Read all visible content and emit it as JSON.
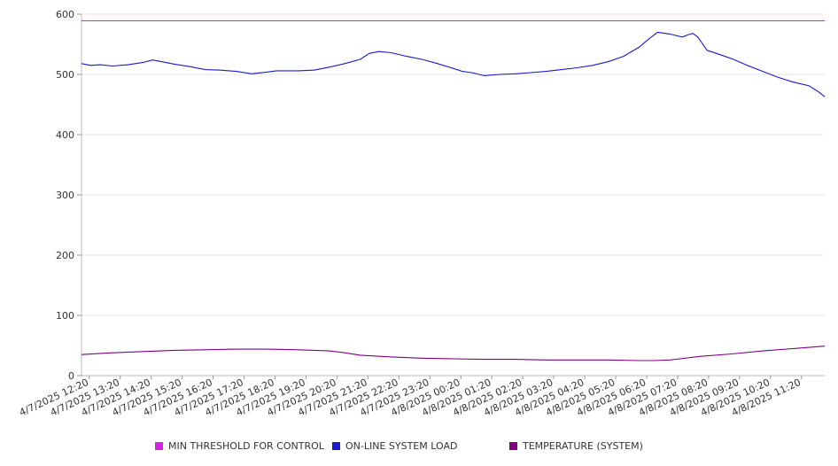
{
  "chart_data": {
    "type": "line",
    "title": "",
    "xlabel": "",
    "ylabel": "",
    "ylim": [
      0,
      600
    ],
    "yticks": [
      0,
      100,
      200,
      300,
      400,
      500,
      600
    ],
    "grid": true,
    "legend_position": "bottom",
    "x_tick_labels": [
      "4/7/2025 12:20",
      "4/7/2025 13:20",
      "4/7/2025 14:20",
      "4/7/2025 15:20",
      "4/7/2025 16:20",
      "4/7/2025 17:20",
      "4/7/2025 18:20",
      "4/7/2025 19:20",
      "4/7/2025 20:20",
      "4/7/2025 21:20",
      "4/7/2025 22:20",
      "4/7/2025 23:20",
      "4/8/2025 00:20",
      "4/8/2025 01:20",
      "4/8/2025 02:20",
      "4/8/2025 03:20",
      "4/8/2025 04:20",
      "4/8/2025 05:20",
      "4/8/2025 06:20",
      "4/8/2025 07:20",
      "4/8/2025 08:20",
      "4/8/2025 09:20",
      "4/8/2025 10:20",
      "4/8/2025 11:20"
    ],
    "x_start": "4/7/2025 12:00",
    "x_end": "4/8/2025 12:00",
    "x_unit": "hours since 4/7/2025 12:00",
    "series": [
      {
        "name": "MIN THRESHOLD FOR CONTROL",
        "color": "#e020e0",
        "x": [
          0,
          24
        ],
        "values": [
          589,
          589
        ]
      },
      {
        "name": "ON-LINE SYSTEM LOAD",
        "color": "#1a1acc",
        "x": [
          0,
          0.3,
          0.6,
          1.0,
          1.5,
          2.0,
          2.3,
          2.6,
          3.0,
          3.5,
          4.0,
          4.5,
          5.0,
          5.5,
          6.0,
          6.3,
          6.6,
          7.0,
          7.5,
          8.0,
          8.5,
          9.0,
          9.3,
          9.6,
          10.0,
          10.5,
          11.0,
          11.5,
          12.0,
          12.3,
          12.6,
          13.0,
          13.5,
          14.0,
          14.5,
          15.0,
          15.5,
          16.0,
          16.5,
          17.0,
          17.5,
          18.0,
          18.3,
          18.6,
          19.0,
          19.4,
          19.6,
          19.75,
          19.9,
          20.2,
          20.5,
          21.0,
          21.5,
          22.0,
          22.5,
          23.0,
          23.5,
          23.8,
          24.0
        ],
        "values": [
          518,
          515,
          516,
          514,
          516,
          520,
          524,
          521,
          517,
          513,
          508,
          507,
          505,
          501,
          504,
          506,
          506,
          506,
          507,
          512,
          518,
          525,
          535,
          538,
          536,
          530,
          525,
          518,
          510,
          505,
          503,
          498,
          500,
          501,
          503,
          505,
          508,
          511,
          515,
          521,
          530,
          545,
          558,
          570,
          567,
          562,
          566,
          568,
          562,
          540,
          535,
          526,
          515,
          505,
          495,
          487,
          481,
          471,
          463
        ]
      },
      {
        "name": "TEMPERATURE (SYSTEM)",
        "color": "#800080",
        "x": [
          0,
          1,
          2,
          3,
          4,
          5,
          6,
          7,
          8,
          8.5,
          9,
          10,
          11,
          12,
          13,
          14,
          15,
          16,
          17,
          18,
          18.5,
          19,
          20,
          21,
          22,
          23,
          24
        ],
        "values": [
          35,
          38,
          40,
          42,
          43,
          44,
          44,
          43,
          41,
          38,
          34,
          31,
          29,
          28,
          27,
          27,
          26,
          26,
          26,
          25,
          25,
          26,
          32,
          36,
          41,
          45,
          49
        ]
      }
    ]
  },
  "legend": {
    "items": [
      {
        "label": "MIN THRESHOLD FOR CONTROL",
        "color": "#e020e0"
      },
      {
        "label": "ON-LINE SYSTEM LOAD",
        "color": "#1a1acc"
      },
      {
        "label": "TEMPERATURE (SYSTEM)",
        "color": "#800080"
      }
    ]
  }
}
